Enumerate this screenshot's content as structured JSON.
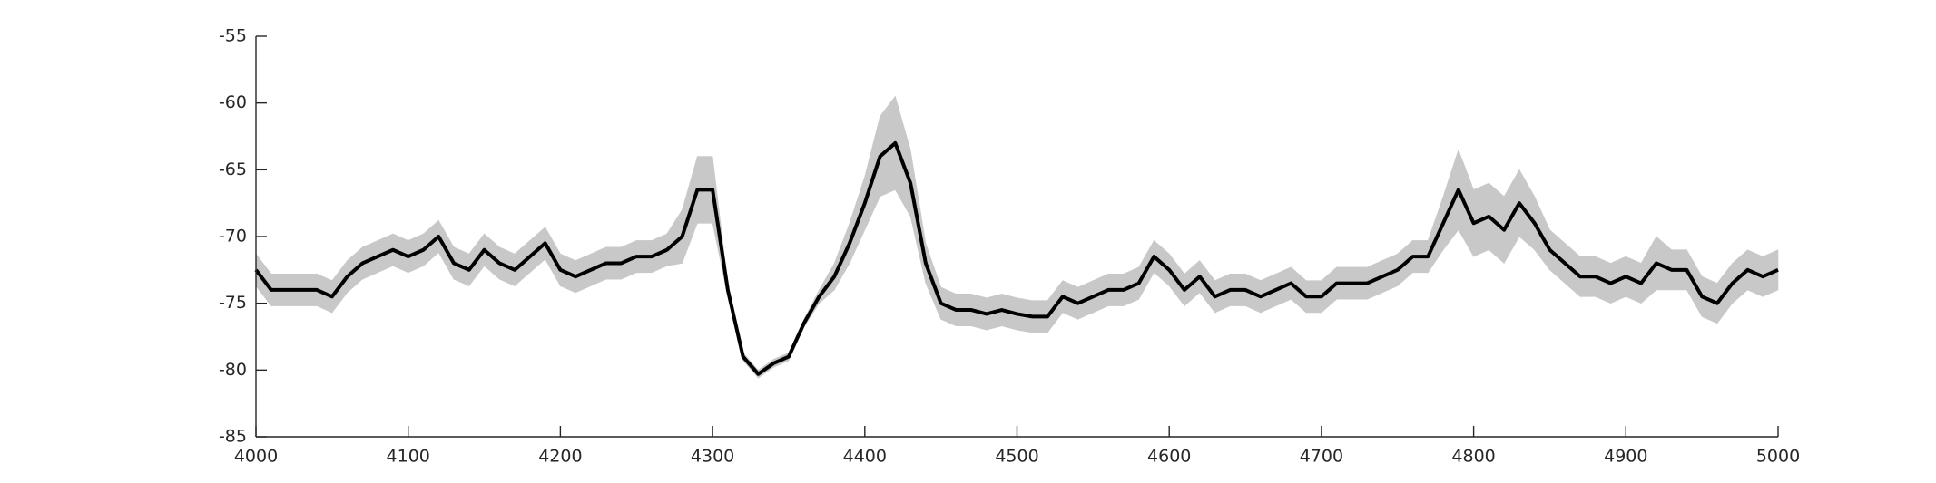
{
  "chart_data": {
    "type": "line",
    "x": [
      4000,
      4010,
      4020,
      4030,
      4040,
      4050,
      4060,
      4070,
      4080,
      4090,
      4100,
      4110,
      4120,
      4130,
      4140,
      4150,
      4160,
      4170,
      4180,
      4190,
      4200,
      4210,
      4220,
      4230,
      4240,
      4250,
      4260,
      4270,
      4280,
      4290,
      4300,
      4310,
      4320,
      4330,
      4340,
      4350,
      4360,
      4370,
      4380,
      4390,
      4400,
      4410,
      4420,
      4430,
      4440,
      4450,
      4460,
      4470,
      4480,
      4490,
      4500,
      4510,
      4520,
      4530,
      4540,
      4550,
      4560,
      4570,
      4580,
      4590,
      4600,
      4610,
      4620,
      4630,
      4640,
      4650,
      4660,
      4670,
      4680,
      4690,
      4700,
      4710,
      4720,
      4730,
      4740,
      4750,
      4760,
      4770,
      4780,
      4790,
      4800,
      4810,
      4820,
      4830,
      4840,
      4850,
      4860,
      4870,
      4880,
      4890,
      4900,
      4910,
      4920,
      4930,
      4940,
      4950,
      4960,
      4970,
      4980,
      4990,
      5000
    ],
    "series": [
      {
        "color": "#c8c8c8",
        "upper": [
          -71.3,
          -72.8,
          -72.8,
          -72.8,
          -72.8,
          -73.3,
          -71.8,
          -70.8,
          -70.3,
          -69.8,
          -70.3,
          -69.8,
          -68.8,
          -70.8,
          -71.3,
          -69.8,
          -70.8,
          -71.3,
          -70.3,
          -69.3,
          -71.3,
          -71.8,
          -71.3,
          -70.8,
          -70.8,
          -70.3,
          -70.3,
          -69.8,
          -68,
          -64,
          -64,
          -73.5,
          -78.7,
          -80,
          -79.2,
          -78.7,
          -76.2,
          -74,
          -72,
          -69,
          -65.5,
          -61,
          -59.5,
          -63.5,
          -70.5,
          -73.8,
          -74.3,
          -74.3,
          -74.6,
          -74.3,
          -74.6,
          -74.8,
          -74.8,
          -73.3,
          -73.8,
          -73.3,
          -72.8,
          -72.8,
          -72.3,
          -70.3,
          -71.3,
          -72.8,
          -71.8,
          -73.3,
          -72.8,
          -72.8,
          -73.3,
          -72.8,
          -72.3,
          -73.3,
          -73.3,
          -72.3,
          -72.3,
          -72.3,
          -71.8,
          -71.3,
          -70.3,
          -70.3,
          -67,
          -63.5,
          -66.5,
          -66,
          -67,
          -65,
          -67,
          -69.5,
          -70.5,
          -71.5,
          -71.5,
          -72,
          -71.5,
          -72,
          -70,
          -71,
          -71,
          -73,
          -73.5,
          -72,
          -71,
          -71.5,
          -71
        ],
        "lower": [
          -73.7,
          -75.2,
          -75.2,
          -75.2,
          -75.2,
          -75.7,
          -74.2,
          -73.2,
          -72.7,
          -72.2,
          -72.7,
          -72.2,
          -71.2,
          -73.2,
          -73.7,
          -72.2,
          -73.2,
          -73.7,
          -72.7,
          -71.7,
          -73.7,
          -74.2,
          -73.7,
          -73.2,
          -73.2,
          -72.7,
          -72.7,
          -72.2,
          -72,
          -69,
          -69,
          -74.5,
          -79.3,
          -80.6,
          -79.8,
          -79.3,
          -76.8,
          -75,
          -74,
          -72,
          -69.5,
          -67,
          -66.5,
          -68.5,
          -73.5,
          -76.2,
          -76.7,
          -76.7,
          -77,
          -76.7,
          -77,
          -77.2,
          -77.2,
          -75.7,
          -76.2,
          -75.7,
          -75.2,
          -75.2,
          -74.7,
          -72.7,
          -73.7,
          -75.2,
          -74.2,
          -75.7,
          -75.2,
          -75.2,
          -75.7,
          -75.2,
          -74.7,
          -75.7,
          -75.7,
          -74.7,
          -74.7,
          -74.7,
          -74.2,
          -73.7,
          -72.7,
          -72.7,
          -71,
          -69.5,
          -71.5,
          -71,
          -72,
          -70,
          -71,
          -72.5,
          -73.5,
          -74.5,
          -74.5,
          -75,
          -74.5,
          -75,
          -74,
          -74,
          -74,
          -76,
          -76.5,
          -75,
          -74,
          -74.5,
          -74
        ]
      },
      {
        "color": "#000000",
        "values": [
          -72.5,
          -74,
          -74,
          -74,
          -74,
          -74.5,
          -73,
          -72,
          -71.5,
          -71,
          -71.5,
          -71,
          -70,
          -72,
          -72.5,
          -71,
          -72,
          -72.5,
          -71.5,
          -70.5,
          -72.5,
          -73,
          -72.5,
          -72,
          -72,
          -71.5,
          -71.5,
          -71,
          -70,
          -66.5,
          -66.5,
          -74,
          -79,
          -80.3,
          -79.5,
          -79,
          -76.5,
          -74.5,
          -73,
          -70.5,
          -67.5,
          -64,
          -63,
          -66,
          -72,
          -75,
          -75.5,
          -75.5,
          -75.8,
          -75.5,
          -75.8,
          -76,
          -76,
          -74.5,
          -75,
          -74.5,
          -74,
          -74,
          -73.5,
          -71.5,
          -72.5,
          -74,
          -73,
          -74.5,
          -74,
          -74,
          -74.5,
          -74,
          -73.5,
          -74.5,
          -74.5,
          -73.5,
          -73.5,
          -73.5,
          -73,
          -72.5,
          -71.5,
          -71.5,
          -69,
          -66.5,
          -69,
          -68.5,
          -69.5,
          -67.5,
          -69,
          -71,
          -72,
          -73,
          -73,
          -73.5,
          -73,
          -73.5,
          -72,
          -72.5,
          -72.5,
          -74.5,
          -75,
          -73.5,
          -72.5,
          -73,
          -72.5
        ]
      }
    ],
    "xlim": [
      4000,
      5000
    ],
    "xticks": [
      4000,
      4100,
      4200,
      4300,
      4400,
      4500,
      4600,
      4700,
      4800,
      4900,
      5000
    ],
    "ylim": [
      -85,
      -55
    ],
    "yticks": [
      -85,
      -80,
      -75,
      -70,
      -65,
      -60,
      -55
    ]
  }
}
